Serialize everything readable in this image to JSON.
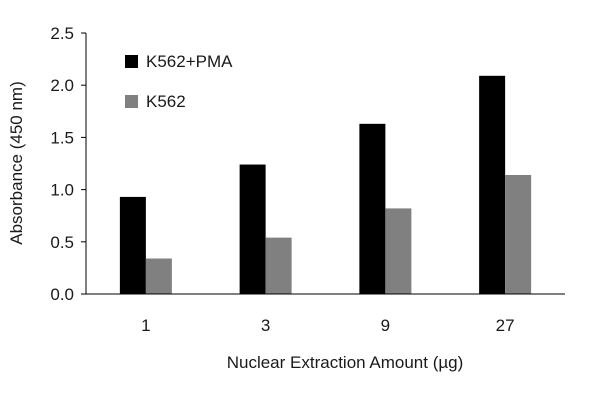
{
  "chart_data": {
    "type": "bar",
    "categories": [
      "1",
      "3",
      "9",
      "27"
    ],
    "series": [
      {
        "name": "K562+PMA",
        "values": [
          0.93,
          1.24,
          1.63,
          2.09
        ],
        "color": "#000000"
      },
      {
        "name": "K562",
        "values": [
          0.34,
          0.54,
          0.82,
          1.14
        ],
        "color": "#808080"
      }
    ],
    "xlabel": "Nuclear Extraction Amount (µg)",
    "ylabel": "Absorbance (450 nm)",
    "ylim": [
      0,
      2.5
    ],
    "yticks": [
      "0.0",
      "0.5",
      "1.0",
      "1.5",
      "2.0",
      "2.5"
    ],
    "grid": false,
    "legend_position": "top-left"
  }
}
